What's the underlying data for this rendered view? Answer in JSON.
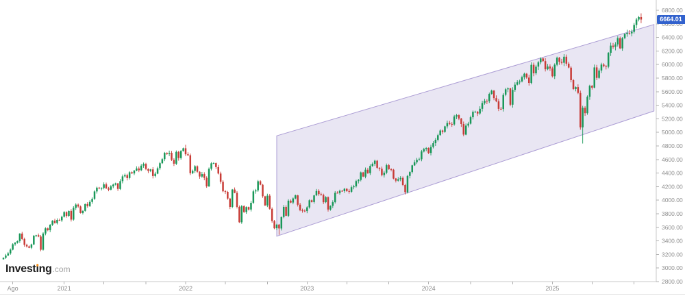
{
  "logo": {
    "part1": "Invest",
    "idot": "i",
    "part2": "ng",
    "suffix": ".com",
    "dot_color": "#f7931e"
  },
  "price_label": {
    "value": "6664.01",
    "price": 6664.01,
    "bg": "#3161cd",
    "text_color": "#ffffff"
  },
  "axis_colors": {
    "line": "#c8c8c8",
    "tick": "#b0b0b0",
    "label": "#8e8e8e",
    "bottom_border": "#e3e3e3"
  },
  "chart_data": {
    "type": "candlestick",
    "timeframe": "weekly",
    "ylim": [
      2800,
      6800
    ],
    "y_ticks": [
      6800,
      6600,
      6400,
      6200,
      6000,
      5800,
      5600,
      5400,
      5200,
      5000,
      4800,
      4600,
      4400,
      4200,
      4000,
      3800,
      3600,
      3400,
      3200,
      3000,
      2800
    ],
    "x_ticks": [
      {
        "label": "Ago",
        "week": 4
      },
      {
        "label": "2021",
        "week": 26
      },
      {
        "label": "2022",
        "week": 78
      },
      {
        "label": "2023",
        "week": 130
      },
      {
        "label": "2024",
        "week": 182
      },
      {
        "label": "2025",
        "week": 235
      }
    ],
    "minor_tick_weeks": [
      4,
      26,
      43,
      61,
      78,
      95,
      113,
      130,
      147,
      165,
      182,
      200,
      218,
      235,
      252,
      270
    ],
    "up_color": "#189758",
    "down_color": "#c83b36",
    "first_open": 3130,
    "last_price": 6664.01,
    "closes": [
      3152,
      3185,
      3216,
      3271,
      3351,
      3373,
      3397,
      3508,
      3427,
      3341,
      3319,
      3298,
      3348,
      3477,
      3484,
      3465,
      3270,
      3509,
      3585,
      3558,
      3638,
      3699,
      3663,
      3709,
      3703,
      3756,
      3825,
      3768,
      3841,
      3714,
      3887,
      3935,
      3907,
      3811,
      3842,
      3943,
      3913,
      3975,
      4020,
      4129,
      4185,
      4180,
      4181,
      4233,
      4174,
      4156,
      4204,
      4230,
      4247,
      4166,
      4281,
      4352,
      4370,
      4327,
      4412,
      4395,
      4437,
      4468,
      4442,
      4509,
      4535,
      4459,
      4433,
      4455,
      4357,
      4391,
      4471,
      4545,
      4605,
      4698,
      4683,
      4698,
      4595,
      4538,
      4712,
      4621,
      4726,
      4766,
      4677,
      4663,
      4398,
      4432,
      4501,
      4419,
      4349,
      4385,
      4329,
      4204,
      4463,
      4543,
      4546,
      4488,
      4393,
      4272,
      4132,
      4123,
      4024,
      3901,
      4158,
      4109,
      3901,
      3675,
      3912,
      3825,
      3899,
      3863,
      3962,
      4130,
      4145,
      4280,
      4228,
      4058,
      3924,
      4067,
      3873,
      3693,
      3586,
      3640,
      3583,
      3753,
      3901,
      3771,
      3993,
      3965,
      4026,
      4072,
      3934,
      3852,
      3845,
      3839,
      3895,
      3999,
      3973,
      4071,
      4136,
      4090,
      4079,
      3970,
      4045,
      3862,
      3917,
      3971,
      4109,
      4105,
      4138,
      4134,
      4169,
      4136,
      4124,
      4192,
      4205,
      4282,
      4299,
      4410,
      4348,
      4450,
      4399,
      4505,
      4536,
      4582,
      4478,
      4464,
      4370,
      4406,
      4516,
      4457,
      4450,
      4320,
      4288,
      4309,
      4328,
      4224,
      4117,
      4358,
      4415,
      4514,
      4559,
      4595,
      4604,
      4719,
      4755,
      4770,
      4697,
      4784,
      4840,
      4891,
      4959,
      5027,
      5006,
      5089,
      5137,
      5124,
      5117,
      5234,
      5254,
      5204,
      5123,
      4967,
      5100,
      5128,
      5223,
      5303,
      5305,
      5278,
      5347,
      5432,
      5465,
      5461,
      5567,
      5615,
      5505,
      5459,
      5347,
      5344,
      5554,
      5635,
      5648,
      5408,
      5626,
      5703,
      5738,
      5751,
      5815,
      5865,
      5808,
      5729,
      5996,
      5871,
      5969,
      6032,
      6090,
      6051,
      5931,
      5971,
      5942,
      5827,
      5997,
      6101,
      6041,
      6026,
      6115,
      6013,
      5955,
      5770,
      5639,
      5668,
      5581,
      5074,
      5363,
      5283,
      5525,
      5687,
      5660,
      5958,
      5803,
      5912,
      6000,
      5977,
      5968,
      6173,
      6279,
      6260,
      6297,
      6389,
      6238,
      6389,
      6450,
      6467,
      6460,
      6482,
      6584,
      6664,
      6699,
      6664
    ],
    "wick_high_overrides": {
      "78": 4818,
      "273": 6755
    },
    "wick_low_overrides": {
      "118": 3491,
      "248": 4835
    },
    "channel": {
      "start_week": 117,
      "end_week": 278.5,
      "top_start_price": 4950,
      "top_end_price": 6590,
      "bottom_start_price": 3470,
      "bottom_end_price": 5315,
      "fill": "rgba(118,98,181,0.16)",
      "stroke": "#ab9cd4"
    }
  }
}
